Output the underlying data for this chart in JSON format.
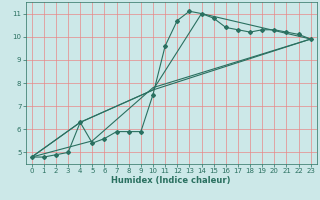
{
  "xlabel": "Humidex (Indice chaleur)",
  "xlim": [
    -0.5,
    23.5
  ],
  "ylim": [
    4.5,
    11.5
  ],
  "xticks": [
    0,
    1,
    2,
    3,
    4,
    5,
    6,
    7,
    8,
    9,
    10,
    11,
    12,
    13,
    14,
    15,
    16,
    17,
    18,
    19,
    20,
    21,
    22,
    23
  ],
  "yticks": [
    5,
    6,
    7,
    8,
    9,
    10,
    11
  ],
  "bg_color": "#cce8e8",
  "grid_color": "#e88888",
  "line_color": "#2a7060",
  "series": [
    [
      0,
      4.8
    ],
    [
      1,
      4.8
    ],
    [
      2,
      4.9
    ],
    [
      3,
      5.0
    ],
    [
      4,
      6.3
    ],
    [
      5,
      5.4
    ],
    [
      6,
      5.6
    ],
    [
      7,
      5.9
    ],
    [
      8,
      5.9
    ],
    [
      9,
      5.9
    ],
    [
      10,
      7.5
    ],
    [
      11,
      9.6
    ],
    [
      12,
      10.7
    ],
    [
      13,
      11.1
    ],
    [
      14,
      11.0
    ],
    [
      15,
      10.8
    ],
    [
      16,
      10.4
    ],
    [
      17,
      10.3
    ],
    [
      18,
      10.2
    ],
    [
      19,
      10.3
    ],
    [
      20,
      10.3
    ],
    [
      21,
      10.2
    ],
    [
      22,
      10.1
    ],
    [
      23,
      9.9
    ]
  ],
  "line2": [
    [
      0,
      4.8
    ],
    [
      4,
      6.3
    ],
    [
      10,
      7.7
    ],
    [
      14,
      11.0
    ],
    [
      23,
      9.9
    ]
  ],
  "line3": [
    [
      0,
      4.8
    ],
    [
      4,
      6.3
    ],
    [
      10,
      7.7
    ],
    [
      23,
      9.9
    ]
  ],
  "line4": [
    [
      0,
      4.8
    ],
    [
      5,
      5.5
    ],
    [
      10,
      7.8
    ],
    [
      23,
      9.9
    ]
  ]
}
